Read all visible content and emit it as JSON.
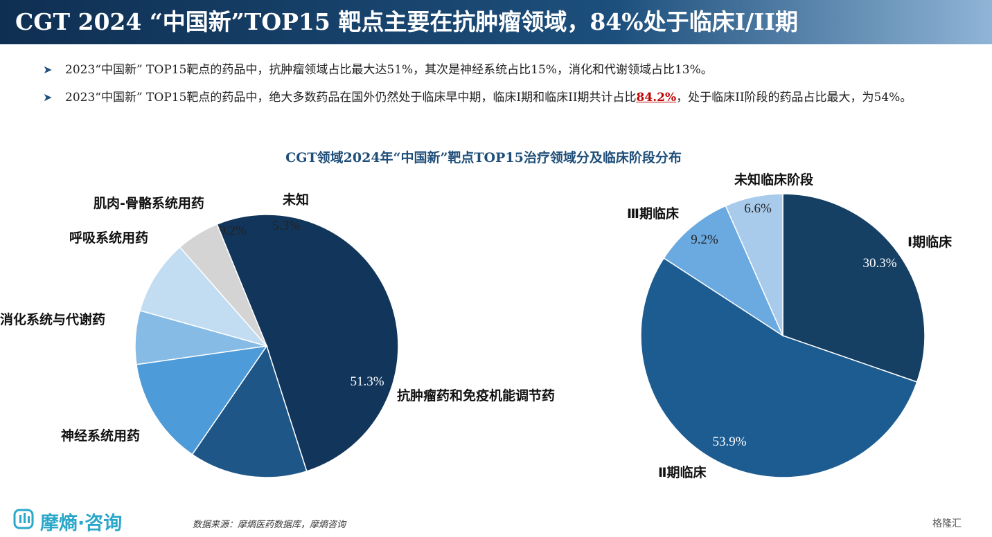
{
  "header": {
    "title": "CGT 2024 “中国新”TOP15 靶点主要在抗肿瘤领域，84%处于临床I/II期"
  },
  "bullets": [
    {
      "text_parts": [
        "2023“中国新” TOP15靶点的药品中，抗肿瘤领域占比最大达51%，其次是神经系统占比15%，消化和代谢领域占比13%。"
      ]
    },
    {
      "text_before": "2023“中国新” TOP15靶点的药品中，绝大多数药品在国外仍然处于临床早中期，临床I期和临床II期共计占比",
      "highlight": "84.2%",
      "text_after": "，处于临床II阶段的药品占比最大，为54%。"
    }
  ],
  "bullet_icon": "arrow-right-icon",
  "chart_title": "CGT领域2024年“中国新”靶点TOP15治疗领域分及临床阶段分布",
  "chart_data": [
    {
      "type": "pie",
      "slices": [
        {
          "label": "抗肿瘤药和免疫机能调节药",
          "value": 51.3,
          "value_label": "51.3%",
          "color": "#12355b"
        },
        {
          "label": "神经系统用药",
          "value": 14.5,
          "value_label": "14.5%",
          "color": "#1d5687"
        },
        {
          "label": "消化系统与代谢药",
          "value": 13.2,
          "value_label": "13.2%",
          "color": "#4d9bd8"
        },
        {
          "label": "呼吸系统用药",
          "value": 6.6,
          "value_label": "6.6%",
          "color": "#86bbe6"
        },
        {
          "label": "肌肉-骨骼系统用药",
          "value": 9.2,
          "value_label": "9.2%",
          "color": "#c2dcf2"
        },
        {
          "label": "未知",
          "value": 5.3,
          "value_label": "5.3%",
          "color": "#d4d4d4"
        }
      ]
    },
    {
      "type": "pie",
      "slices": [
        {
          "label": "Ⅰ期临床",
          "value": 30.3,
          "value_label": "30.3%",
          "color": "#153f63"
        },
        {
          "label": "Ⅱ期临床",
          "value": 53.9,
          "value_label": "53.9%",
          "color": "#1d5c91"
        },
        {
          "label": "Ⅲ期临床",
          "value": 9.2,
          "value_label": "9.2%",
          "color": "#6aaae0"
        },
        {
          "label": "未知临床阶段",
          "value": 6.6,
          "value_label": "6.6%",
          "color": "#a8cbeb"
        }
      ]
    }
  ],
  "footer": {
    "logo_text": "摩熵·咨询",
    "logo_icon": "moshang-logo-icon",
    "source": "数据来源：摩熵医药数据库，摩熵咨询",
    "corner_mark": "格隆汇"
  },
  "colors": {
    "title_bar": "#1d4f7c",
    "highlight": "#c00000",
    "accent": "#1f4e79"
  }
}
